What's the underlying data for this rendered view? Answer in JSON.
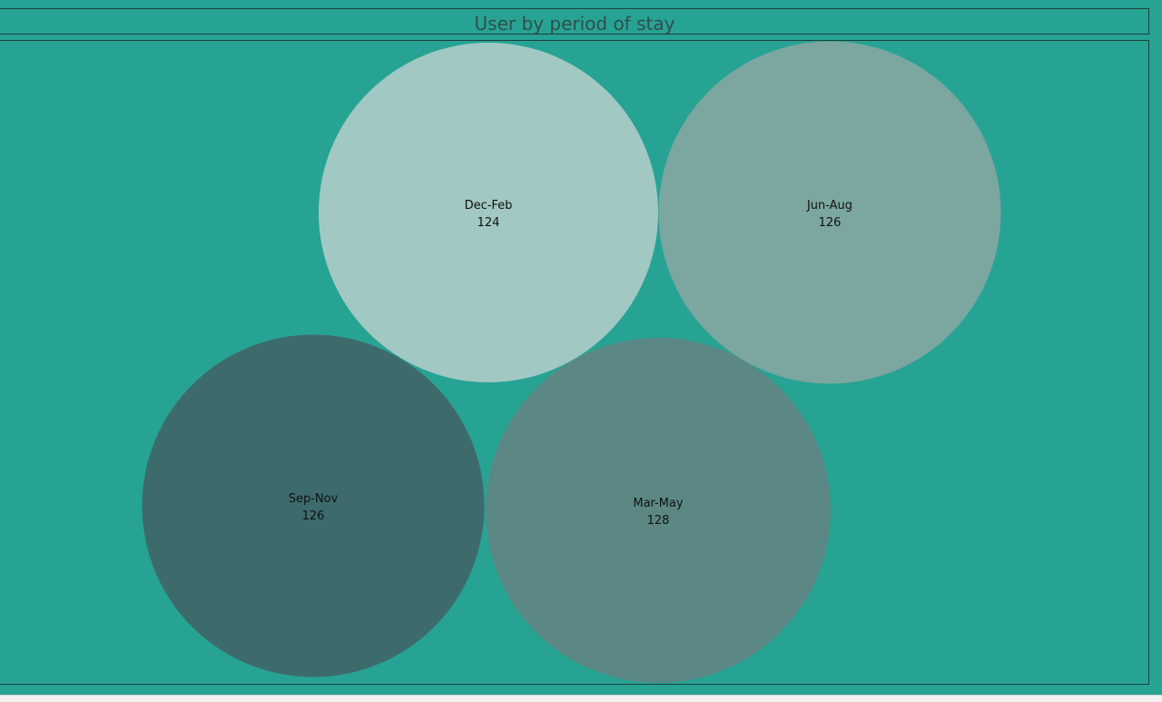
{
  "chart_data": {
    "type": "bubble",
    "title": "User by period of stay",
    "categories": [
      "Dec-Feb",
      "Jun-Aug",
      "Sep-Nov",
      "Mar-May"
    ],
    "values": [
      124,
      126,
      126,
      128
    ],
    "colors": [
      "#a1c8c3",
      "#7ba7a0",
      "#3d6b6b",
      "#5b8885"
    ],
    "background": "#27a394",
    "legend": "none"
  }
}
